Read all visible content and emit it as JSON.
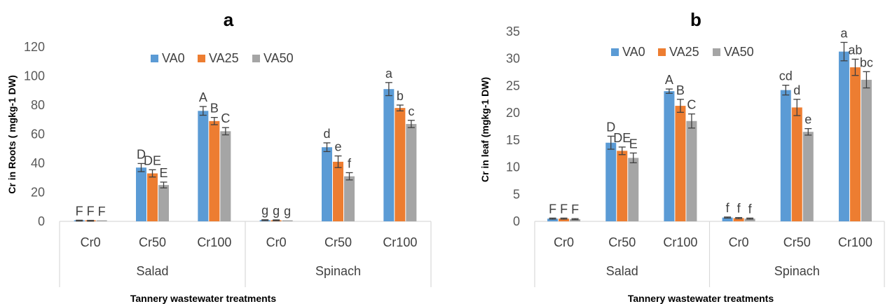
{
  "chart_data": [
    {
      "type": "bar",
      "title": "a",
      "ylabel": "Cr in Roots ( mgkg-1 DW)",
      "xlabel": "Tannery wastewater treatments",
      "ylim": [
        0,
        120
      ],
      "yticks": [
        0,
        20,
        40,
        60,
        80,
        100,
        120
      ],
      "groups": [
        "Salad",
        "Spinach"
      ],
      "categories": [
        "Cr0",
        "Cr50",
        "Cr100",
        "Cr0",
        "Cr50",
        "Cr100"
      ],
      "legend_position": "top",
      "grid": false,
      "series": [
        {
          "name": "VA0",
          "color": "#5B9BD5",
          "values": [
            0.5,
            37,
            76,
            0.8,
            51,
            91
          ],
          "errors": [
            0.3,
            2.8,
            3,
            0.3,
            3,
            4.5
          ],
          "labels": [
            "F",
            "D",
            "A",
            "g",
            "d",
            "a"
          ]
        },
        {
          "name": "VA25",
          "color": "#ED7D31",
          "values": [
            0.4,
            33,
            69,
            0.7,
            41,
            78
          ],
          "errors": [
            0.3,
            2.5,
            2.5,
            0.3,
            4,
            2
          ],
          "labels": [
            "F",
            "DE",
            "B",
            "g",
            "e",
            "b"
          ]
        },
        {
          "name": "VA50",
          "color": "#A5A5A5",
          "values": [
            0.3,
            25,
            62,
            0.5,
            31,
            67
          ],
          "errors": [
            0.2,
            2,
            2.5,
            0.2,
            2.5,
            2.5
          ],
          "labels": [
            "F",
            "E",
            "C",
            "g",
            "f",
            "c"
          ]
        }
      ]
    },
    {
      "type": "bar",
      "title": "b",
      "ylabel": "Cr in leaf (mgkg-1 DW)",
      "xlabel": "Tannery wastewater treatments",
      "ylim": [
        0,
        35
      ],
      "yticks": [
        0,
        5,
        10,
        15,
        20,
        25,
        30,
        35
      ],
      "groups": [
        "Salad",
        "Spinach"
      ],
      "categories": [
        "Cr0",
        "Cr50",
        "Cr100",
        "Cr0",
        "Cr50",
        "Cr100"
      ],
      "legend_position": "top",
      "grid": false,
      "series": [
        {
          "name": "VA0",
          "color": "#5B9BD5",
          "values": [
            0.5,
            14.5,
            24,
            0.7,
            24.2,
            31.3
          ],
          "errors": [
            0.1,
            1.2,
            0.4,
            0.1,
            0.9,
            1.7
          ],
          "labels": [
            "F",
            "D",
            "A",
            "f",
            "cd",
            "a"
          ]
        },
        {
          "name": "VA25",
          "color": "#ED7D31",
          "values": [
            0.5,
            13,
            21.3,
            0.6,
            21,
            28.4
          ],
          "errors": [
            0.1,
            0.7,
            1.2,
            0.1,
            1.5,
            1.5
          ],
          "labels": [
            "F",
            "DE",
            "B",
            "f",
            "d",
            "ab"
          ]
        },
        {
          "name": "VA50",
          "color": "#A5A5A5",
          "values": [
            0.4,
            11.7,
            18.5,
            0.5,
            16.5,
            26.1
          ],
          "errors": [
            0.1,
            0.9,
            1.3,
            0.1,
            0.6,
            1.5
          ],
          "labels": [
            "F",
            "E",
            "C",
            "f",
            "e",
            "bc"
          ]
        }
      ]
    }
  ]
}
